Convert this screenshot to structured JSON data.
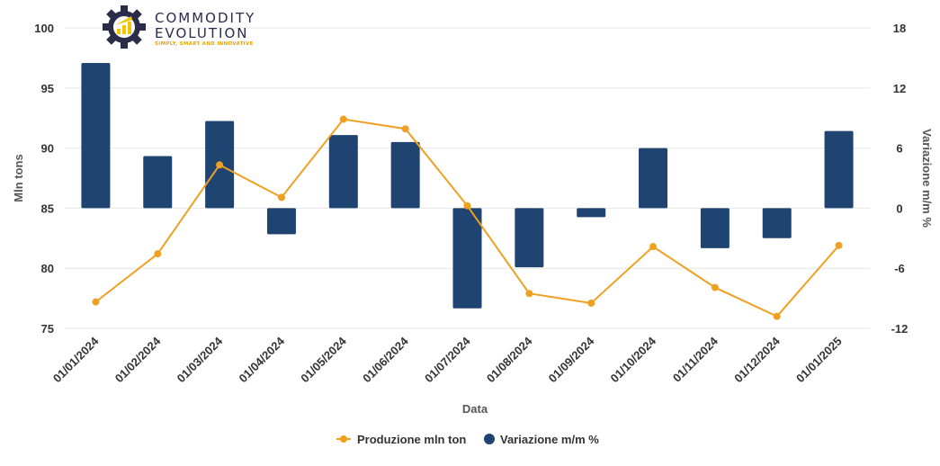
{
  "logo": {
    "line1": "COMMODITY",
    "line2": "EVOLUTION",
    "tagline": "SIMPLY, SMART AND INNOVATIVE",
    "colors": {
      "gear": "#2b2b4a",
      "accent": "#f5c400"
    }
  },
  "colors": {
    "line": "#f0a020",
    "bars": "#1f4472",
    "grid": "#e6e6e6"
  },
  "chart_data": {
    "type": "bar",
    "categories": [
      "01/01/2024",
      "01/02/2024",
      "01/03/2024",
      "01/04/2024",
      "01/05/2024",
      "01/06/2024",
      "01/07/2024",
      "01/08/2024",
      "01/09/2024",
      "01/10/2024",
      "01/11/2024",
      "01/12/2024",
      "01/01/2025"
    ],
    "series": [
      {
        "name": "Produzione mln ton",
        "type": "line",
        "axis": "left",
        "values": [
          77.2,
          81.2,
          88.6,
          85.9,
          92.4,
          91.6,
          85.2,
          77.9,
          77.1,
          81.8,
          78.4,
          76.0,
          81.9
        ]
      },
      {
        "name": "Variazione m/m %",
        "type": "bar",
        "axis": "right",
        "values": [
          14.5,
          5.2,
          8.7,
          -2.6,
          7.3,
          6.6,
          -10.0,
          -5.9,
          -0.9,
          6.0,
          -4.0,
          -3.0,
          7.7
        ]
      }
    ],
    "xlabel": "Data",
    "ylabel": "Mln tons",
    "y2label": "Variazione m/m %",
    "ylim": [
      75,
      100
    ],
    "yticks": [
      75,
      80,
      85,
      90,
      95,
      100
    ],
    "y2lim": [
      -12,
      18
    ],
    "y2ticks": [
      -12,
      -6,
      0,
      6,
      12,
      18
    ],
    "grid": true,
    "legend_position": "bottom-center"
  }
}
